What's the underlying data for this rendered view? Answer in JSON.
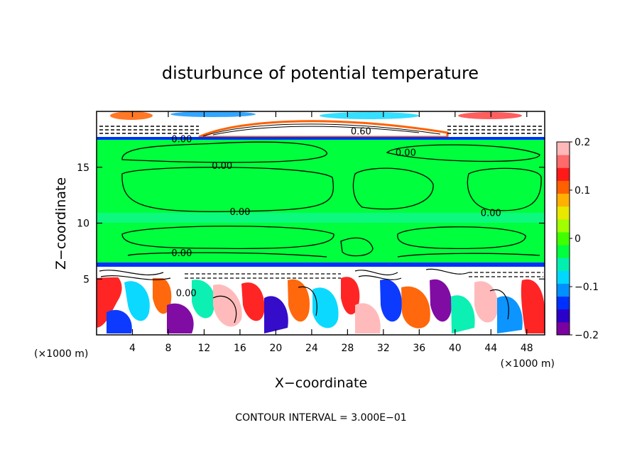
{
  "chart_data": {
    "type": "heatmap",
    "title": "disturbunce of potential temperature",
    "xlabel": "X−coordinate",
    "ylabel": "Z−coordinate",
    "x_unit_left": "(×1000 m)",
    "x_unit_right": "(×1000 m)",
    "xlim": [
      0,
      50
    ],
    "ylim": [
      0,
      20
    ],
    "x_ticks": [
      4,
      8,
      12,
      16,
      20,
      24,
      28,
      32,
      36,
      40,
      44,
      48
    ],
    "y_ticks": [
      5,
      10,
      15
    ],
    "colorbar": {
      "min": -0.2,
      "max": 0.2,
      "labels": [
        "0.2",
        "0.1",
        "0",
        "−0.1",
        "−0.2"
      ],
      "label_values": [
        0.2,
        0.1,
        0.0,
        -0.1,
        -0.2
      ],
      "colors": [
        "#7a00a0",
        "#2b00c8",
        "#0030ff",
        "#0090ff",
        "#00d8ff",
        "#00f0b0",
        "#00ff3c",
        "#40ff00",
        "#a0ff00",
        "#e8e800",
        "#ffb000",
        "#ff6000",
        "#ff1a1a",
        "#ff6a6a",
        "#ffb8b8"
      ]
    },
    "contour_labels": [
      {
        "text": "0.00",
        "x": 9.5,
        "z": 17.5
      },
      {
        "text": "0.00",
        "x": 14.0,
        "z": 15.1
      },
      {
        "text": "0.60",
        "x": 29.5,
        "z": 18.2
      },
      {
        "text": "0.00",
        "x": 34.5,
        "z": 16.3
      },
      {
        "text": "0.00",
        "x": 16.0,
        "z": 11.0
      },
      {
        "text": "0.00",
        "x": 44.0,
        "z": 10.9
      },
      {
        "text": "0.00",
        "x": 9.5,
        "z": 7.3
      },
      {
        "text": "0.00",
        "x": 10.0,
        "z": 3.7
      }
    ],
    "footer": "CONTOUR INTERVAL = 3.000E−01",
    "grid": false,
    "legend": "right"
  }
}
